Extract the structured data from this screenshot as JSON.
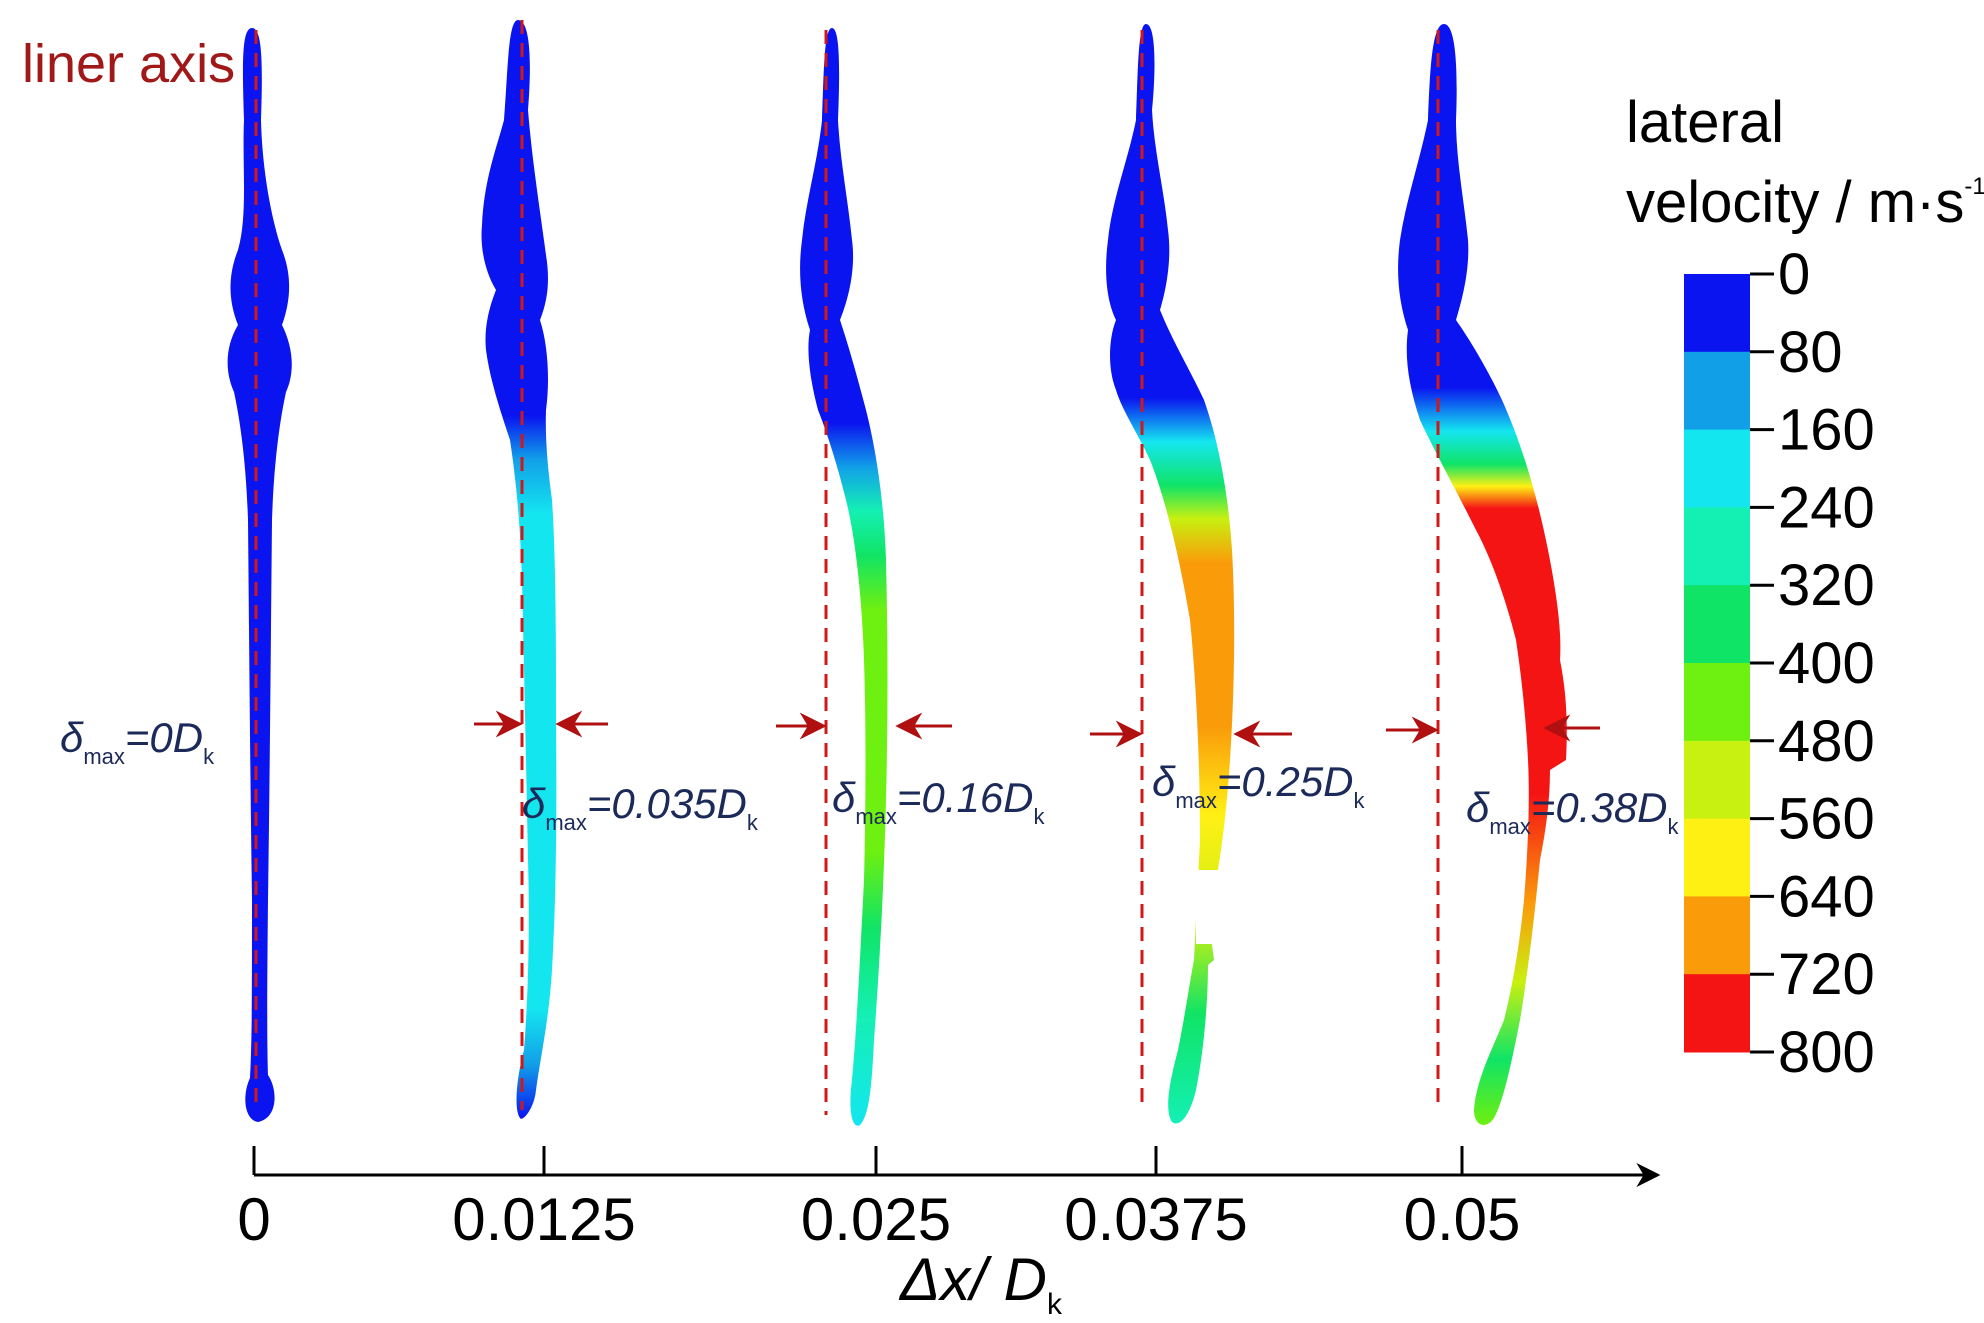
{
  "axis_line_label": "liner axis",
  "colorbar": {
    "title_line1": "lateral",
    "title_line2": "velocity / m·s",
    "title_exponent": "-1",
    "ticks": [
      "0",
      "80",
      "160",
      "240",
      "320",
      "400",
      "480",
      "560",
      "640",
      "720",
      "800"
    ],
    "colors": [
      "#0a14f0",
      "#11a0e8",
      "#14e6f0",
      "#14f0b4",
      "#10e466",
      "#6ef010",
      "#c8f010",
      "#fff014",
      "#fa9c0a",
      "#f51414"
    ]
  },
  "x_axis": {
    "ticks": [
      "0",
      "0.0125",
      "0.025",
      "0.0375",
      "0.05"
    ],
    "label_main": "Δx/ D",
    "label_sub": "k"
  },
  "jets": [
    {
      "delta_symbol": "δ",
      "delta_sub": "max",
      "delta_value": "=0D",
      "delta_value_sub": "k",
      "deflection": "0"
    },
    {
      "delta_symbol": "δ",
      "delta_sub": "max",
      "delta_value": "=0.035D",
      "delta_value_sub": "k",
      "deflection": "0.035"
    },
    {
      "delta_symbol": "δ",
      "delta_sub": "max",
      "delta_value": "=0.16D",
      "delta_value_sub": "k",
      "deflection": "0.16"
    },
    {
      "delta_symbol": "δ",
      "delta_sub": "max",
      "delta_value": "=0.25D",
      "delta_value_sub": "k",
      "deflection": "0.25"
    },
    {
      "delta_symbol": "δ",
      "delta_sub": "max",
      "delta_value": "=0.38D",
      "delta_value_sub": "k",
      "deflection": "0.38"
    }
  ]
}
